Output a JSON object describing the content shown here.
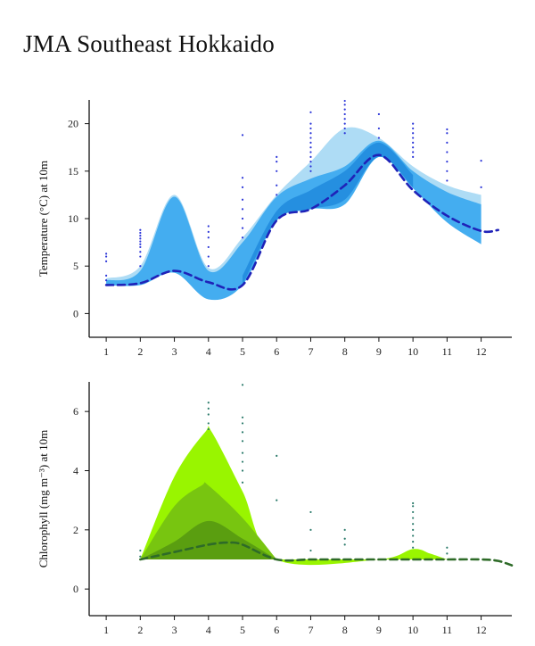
{
  "page_title": "JMA Southeast Hokkaido",
  "colors": {
    "temp_outer": "#aedcf5",
    "temp_mid": "#44adf0",
    "temp_inner": "#258fe0",
    "temp_median": "#1f22b8",
    "temp_points": "#2b35d8",
    "chl_outer": "#99f500",
    "chl_mid": "#78c510",
    "chl_inner": "#5a9e10",
    "chl_median": "#2e6b28",
    "chl_points": "#2a7a6a"
  },
  "chart_data": [
    {
      "type": "area",
      "ylabel": "Temperature (°C) at 10m",
      "xlim": [
        0.5,
        12.9
      ],
      "ylim": [
        -2.5,
        22.5
      ],
      "x_ticks": [
        1,
        2,
        3,
        4,
        5,
        6,
        7,
        8,
        9,
        10,
        11,
        12
      ],
      "y_ticks": [
        0,
        5,
        10,
        15,
        20
      ],
      "series": [
        {
          "role": "outer_band",
          "x": [
            1,
            2,
            3,
            4,
            5,
            6,
            7,
            8,
            9,
            10,
            11,
            12
          ],
          "lower": [
            3.3,
            3.2,
            4.3,
            1.8,
            3.5,
            10.0,
            11.5,
            13.5,
            17.0,
            13.5,
            10.0,
            7.5
          ],
          "upper": [
            3.7,
            5.0,
            12.5,
            4.8,
            8.0,
            12.5,
            16.0,
            19.5,
            18.5,
            15.5,
            13.5,
            12.5
          ]
        },
        {
          "role": "mid_band",
          "x": [
            1,
            2,
            3,
            4,
            5,
            6,
            7,
            8,
            9,
            10,
            11,
            12
          ],
          "lower": [
            3.0,
            3.0,
            4.3,
            1.5,
            3.0,
            9.8,
            11.0,
            11.5,
            16.5,
            13.2,
            9.6,
            7.3
          ],
          "upper": [
            3.5,
            4.5,
            12.3,
            4.5,
            7.5,
            12.3,
            14.2,
            15.5,
            18.2,
            15.0,
            12.8,
            11.5
          ]
        },
        {
          "role": "inner_band",
          "x": [
            5,
            6,
            7,
            8,
            9,
            10
          ],
          "lower": [
            3.0,
            9.8,
            11.0,
            12.0,
            16.5,
            13.3
          ],
          "upper": [
            4.0,
            10.8,
            13.0,
            15.0,
            18.0,
            14.6
          ]
        },
        {
          "role": "median",
          "x": [
            1,
            2,
            3,
            4,
            5,
            6,
            7,
            8,
            9,
            10,
            11,
            12,
            12.5
          ],
          "y": [
            3.0,
            3.2,
            4.5,
            3.3,
            3.0,
            9.8,
            11.0,
            13.5,
            16.7,
            13.0,
            10.3,
            8.7,
            8.8
          ]
        }
      ],
      "points": [
        {
          "x": 1,
          "y": [
            3.5,
            4.0,
            5.5,
            6.0,
            6.3
          ]
        },
        {
          "x": 2,
          "y": [
            5.0,
            6.0,
            6.5,
            7.0,
            7.3,
            7.6,
            7.9,
            8.2,
            8.5,
            8.8
          ]
        },
        {
          "x": 4,
          "y": [
            5.0,
            6.0,
            7.0,
            8.0,
            8.6,
            9.2
          ]
        },
        {
          "x": 5,
          "y": [
            8.0,
            9.0,
            10.0,
            11.0,
            12.0,
            13.3,
            14.3,
            18.8
          ]
        },
        {
          "x": 6,
          "y": [
            12.5,
            13.5,
            15.0,
            16.0,
            16.5
          ]
        },
        {
          "x": 7,
          "y": [
            15.0,
            15.5,
            16.0,
            16.5,
            17.0,
            17.5,
            18.0,
            18.5,
            19.0,
            19.5,
            20.0,
            21.2
          ]
        },
        {
          "x": 8,
          "y": [
            19.0,
            19.5,
            20.0,
            20.5,
            21.0,
            21.5,
            22.0,
            22.4
          ]
        },
        {
          "x": 9,
          "y": [
            18.5,
            19.5,
            21.0
          ]
        },
        {
          "x": 10,
          "y": [
            16.5,
            17.0,
            17.5,
            18.0,
            18.5,
            19.0,
            19.5,
            20.0
          ]
        },
        {
          "x": 11,
          "y": [
            14.0,
            15.0,
            16.0,
            17.0,
            18.0,
            19.0,
            19.4
          ]
        },
        {
          "x": 12,
          "y": [
            13.3,
            16.1
          ]
        }
      ]
    },
    {
      "type": "area",
      "ylabel": "Chlorophyll (mg m⁻³) at 10m",
      "xlim": [
        0.5,
        12.9
      ],
      "ylim": [
        -0.9,
        7.0
      ],
      "x_ticks": [
        1,
        2,
        3,
        4,
        5,
        6,
        7,
        8,
        9,
        10,
        11,
        12
      ],
      "y_ticks": [
        0,
        2,
        4,
        6
      ],
      "series": [
        {
          "role": "outer_band",
          "x": [
            2,
            3,
            3.9,
            4.1,
            5,
            6,
            9,
            10,
            10.5,
            11
          ],
          "lower": [
            1.0,
            1.0,
            1.0,
            1.0,
            1.0,
            1.0,
            1.0,
            1.0,
            1.0,
            1.0
          ],
          "upper": [
            1.0,
            3.8,
            5.3,
            5.3,
            3.3,
            1.0,
            1.0,
            1.35,
            1.2,
            1.0
          ]
        },
        {
          "role": "mid_band",
          "x": [
            2,
            3,
            3.8,
            4.0,
            5,
            6
          ],
          "lower": [
            1.0,
            1.0,
            1.0,
            1.0,
            1.0,
            1.0
          ],
          "upper": [
            1.0,
            2.8,
            3.5,
            3.5,
            2.4,
            1.0
          ]
        },
        {
          "role": "inner_band",
          "x": [
            2,
            3,
            4,
            5,
            6
          ],
          "lower": [
            1.0,
            1.0,
            1.0,
            1.0,
            1.0
          ],
          "upper": [
            1.0,
            1.6,
            2.3,
            1.7,
            1.0
          ]
        },
        {
          "role": "median",
          "x": [
            2,
            3,
            4,
            4.6,
            5,
            6,
            7,
            8,
            9,
            10,
            11,
            12,
            12.5,
            12.9
          ],
          "y": [
            1.0,
            1.25,
            1.5,
            1.57,
            1.5,
            1.0,
            1.0,
            1.0,
            1.0,
            1.0,
            1.0,
            1.0,
            0.95,
            0.8
          ]
        }
      ],
      "points": [
        {
          "x": 2,
          "y": [
            1.1,
            1.3
          ]
        },
        {
          "x": 4,
          "y": [
            5.4,
            5.6,
            5.9,
            6.1,
            6.3
          ]
        },
        {
          "x": 5,
          "y": [
            3.6,
            4.0,
            4.3,
            4.6,
            5.0,
            5.3,
            5.6,
            5.8,
            6.9
          ]
        },
        {
          "x": 6,
          "y": [
            3.0,
            4.5
          ]
        },
        {
          "x": 7,
          "y": [
            1.3,
            2.0,
            2.6
          ]
        },
        {
          "x": 8,
          "y": [
            1.5,
            1.7,
            2.0
          ]
        },
        {
          "x": 10,
          "y": [
            1.4,
            1.6,
            1.8,
            2.0,
            2.2,
            2.4,
            2.6,
            2.8,
            2.9
          ]
        },
        {
          "x": 11,
          "y": [
            1.2,
            1.4
          ]
        }
      ]
    }
  ]
}
